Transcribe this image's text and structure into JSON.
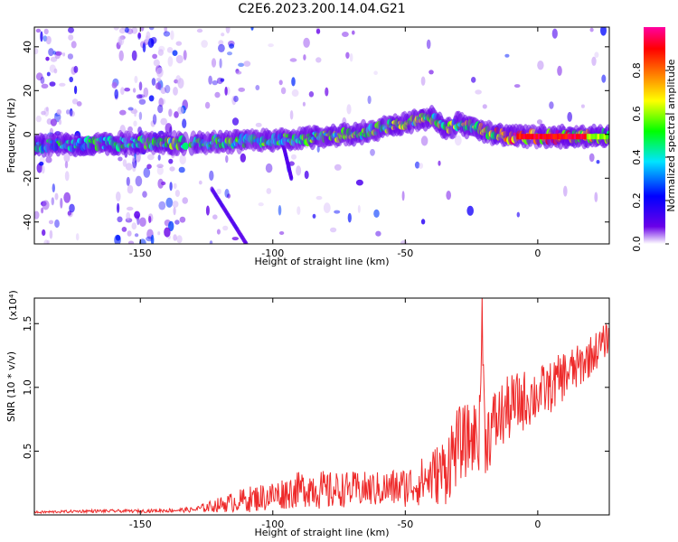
{
  "figure_title": "C2E6.2023.200.14.04.G21",
  "chart_data": [
    {
      "type": "heatmap",
      "title": "C2E6.2023.200.14.04.G21",
      "xlabel": "Height of straight line (km)",
      "ylabel": "Frequency (Hz)",
      "xlim": [
        -190,
        27
      ],
      "ylim": [
        -50,
        49
      ],
      "x_ticks": [
        -150,
        -100,
        -50,
        0
      ],
      "y_ticks": [
        -40,
        -20,
        0,
        20,
        40
      ],
      "colorbar": {
        "label": "Normalized spectral amplitude",
        "range": [
          0,
          1
        ],
        "ticks": [
          0.0,
          0.2,
          0.4,
          0.6,
          0.8
        ],
        "colormap": [
          "#ffffff",
          "#6a00e8",
          "#0000ff",
          "#00e5ff",
          "#00ff00",
          "#ffff00",
          "#ff8000",
          "#ff0000",
          "#ff00a0"
        ]
      },
      "ridge": {
        "x": [
          -190,
          -160,
          -130,
          -110,
          -90,
          -70,
          -50,
          -40,
          -35,
          -30,
          -20,
          -10,
          0,
          10,
          27
        ],
        "frequency_hz": [
          -5,
          -4,
          -4,
          -3,
          -2,
          0,
          5,
          8,
          2,
          5,
          1,
          -1,
          -1,
          -1,
          -1
        ],
        "amplitude": [
          0.45,
          0.5,
          0.6,
          0.5,
          0.55,
          0.55,
          0.6,
          0.6,
          0.55,
          0.6,
          0.7,
          0.85,
          0.9,
          0.9,
          0.6
        ]
      },
      "streaks": [
        {
          "x": [
            -96,
            -93
          ],
          "frequency_hz": [
            -5,
            -20
          ]
        },
        {
          "x": [
            -123,
            -110
          ],
          "frequency_hz": [
            -25,
            -50
          ]
        }
      ]
    },
    {
      "type": "line",
      "xlabel": "Height of straight line (km)",
      "ylabel": "SNR (10 * v/v)",
      "y_multiplier": "(x10⁴)",
      "xlim": [
        -190,
        27
      ],
      "ylim": [
        0,
        1.7
      ],
      "x_ticks": [
        -150,
        -100,
        -50,
        0
      ],
      "y_ticks": [
        0.5,
        1.0,
        1.5
      ],
      "y_tick_labels": [
        "0.5",
        "1.0",
        "1.5"
      ],
      "color": "#ee2a2a",
      "series": [
        {
          "x": [
            -190,
            -180,
            -170,
            -160,
            -150,
            -140,
            -130,
            -125,
            -120,
            -110,
            -100,
            -90,
            -85,
            -80,
            -75,
            -70,
            -60,
            -50,
            -45,
            -40,
            -35,
            -33,
            -30,
            -25,
            -22,
            -21,
            -20,
            -15,
            -10,
            -5,
            0,
            5,
            10,
            15,
            20,
            25,
            27
          ],
          "values": [
            0.02,
            0.025,
            0.03,
            0.03,
            0.03,
            0.035,
            0.04,
            0.06,
            0.08,
            0.12,
            0.15,
            0.2,
            0.22,
            0.18,
            0.2,
            0.2,
            0.2,
            0.22,
            0.25,
            0.3,
            0.35,
            0.45,
            0.55,
            0.6,
            0.65,
            1.5,
            0.6,
            0.75,
            0.85,
            0.9,
            0.95,
            1.0,
            1.1,
            1.15,
            1.25,
            1.35,
            1.4
          ],
          "noise_amplitude": [
            0.01,
            0.01,
            0.012,
            0.012,
            0.012,
            0.015,
            0.02,
            0.04,
            0.06,
            0.1,
            0.12,
            0.14,
            0.16,
            0.16,
            0.14,
            0.14,
            0.14,
            0.16,
            0.18,
            0.22,
            0.28,
            0.32,
            0.3,
            0.28,
            0.3,
            0.2,
            0.3,
            0.28,
            0.26,
            0.24,
            0.22,
            0.2,
            0.2,
            0.18,
            0.16,
            0.14,
            0.12
          ]
        }
      ]
    }
  ]
}
